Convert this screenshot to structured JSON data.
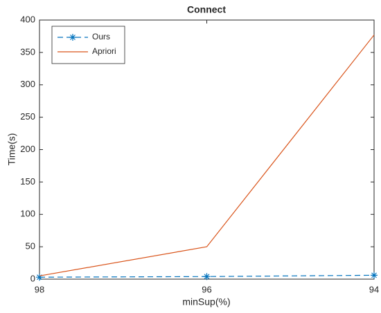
{
  "chart_data": {
    "type": "line",
    "title": "Connect",
    "x_label": "minSup(%)",
    "y_label": "Time(s)",
    "x": [
      98,
      96,
      94
    ],
    "xlim": [
      98,
      94
    ],
    "xticks": [
      98,
      96,
      94
    ],
    "ylim": [
      0,
      400
    ],
    "yticks": [
      0,
      50,
      100,
      150,
      200,
      250,
      300,
      350,
      400
    ],
    "legend_position": "upper-left",
    "series": [
      {
        "name": "Ours",
        "color": "#0072bd",
        "values": [
          3,
          4,
          6
        ],
        "line_style": "dashed",
        "marker": "asterisk"
      },
      {
        "name": "Apriori",
        "color": "#d95319",
        "values": [
          5,
          50,
          377
        ],
        "line_style": "solid",
        "marker": "none"
      }
    ]
  }
}
